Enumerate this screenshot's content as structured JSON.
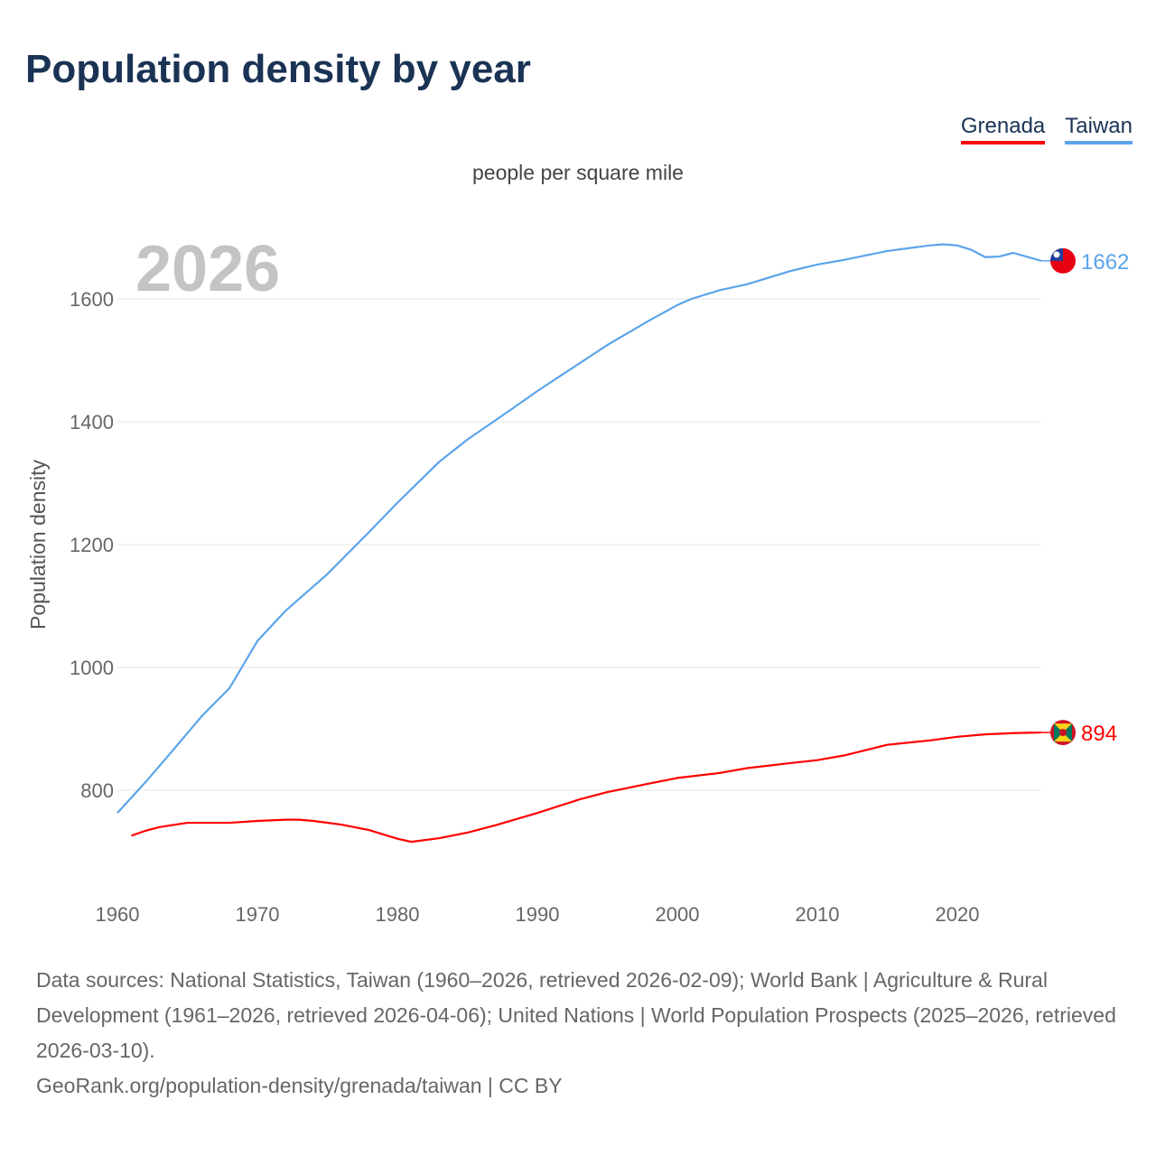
{
  "chart_data": {
    "type": "line",
    "title": "Population density by year",
    "subtitle": "people per square mile",
    "ylabel": "Population density",
    "xlabel": "",
    "year_label": "2026",
    "xlim": [
      1960,
      2026
    ],
    "ylim": [
      680,
      1720
    ],
    "x_ticks": [
      1960,
      1970,
      1980,
      1990,
      2000,
      2010,
      2020
    ],
    "y_ticks": [
      800,
      1000,
      1200,
      1400,
      1600
    ],
    "grid": true,
    "legend_placement": "top-right",
    "series": [
      {
        "name": "Grenada",
        "color": "#ff0000",
        "end_label": "894",
        "flag": "grenada-flag",
        "x": [
          1961,
          1962,
          1963,
          1965,
          1968,
          1970,
          1972,
          1973,
          1974,
          1976,
          1978,
          1980,
          1981,
          1983,
          1985,
          1987,
          1990,
          1993,
          1995,
          1998,
          2000,
          2003,
          2005,
          2008,
          2010,
          2012,
          2015,
          2018,
          2020,
          2022,
          2024,
          2026
        ],
        "y": [
          726,
          734,
          740,
          747,
          747,
          750,
          752,
          752,
          750,
          744,
          735,
          721,
          716,
          722,
          731,
          743,
          763,
          785,
          797,
          811,
          820,
          828,
          836,
          844,
          849,
          857,
          874,
          881,
          887,
          891,
          893,
          894
        ]
      },
      {
        "name": "Taiwan",
        "color": "#5ba4ea",
        "end_label": "1662",
        "flag": "taiwan-flag",
        "x": [
          1960,
          1962,
          1964,
          1966,
          1968,
          1970,
          1972,
          1975,
          1978,
          1980,
          1983,
          1985,
          1988,
          1990,
          1992,
          1995,
          1998,
          2000,
          2001,
          2003,
          2005,
          2008,
          2010,
          2012,
          2015,
          2018,
          2019,
          2020,
          2021,
          2022,
          2023,
          2024,
          2026
        ],
        "y": [
          763,
          813,
          866,
          920,
          966,
          1043,
          1092,
          1152,
          1221,
          1268,
          1335,
          1371,
          1418,
          1450,
          1480,
          1525,
          1565,
          1590,
          1600,
          1614,
          1624,
          1645,
          1656,
          1664,
          1678,
          1687,
          1689,
          1687,
          1680,
          1668,
          1669,
          1675,
          1662
        ]
      }
    ]
  },
  "footer": {
    "sources": "Data sources: National Statistics, Taiwan (1960–2026, retrieved 2026-02-09); World Bank | Agriculture & Rural Development (1961–2026, retrieved 2026-04-06); United Nations | World Population Prospects (2025–2026, retrieved 2026-03-10).",
    "link": "GeoRank.org/population-density/grenada/taiwan | CC BY"
  }
}
